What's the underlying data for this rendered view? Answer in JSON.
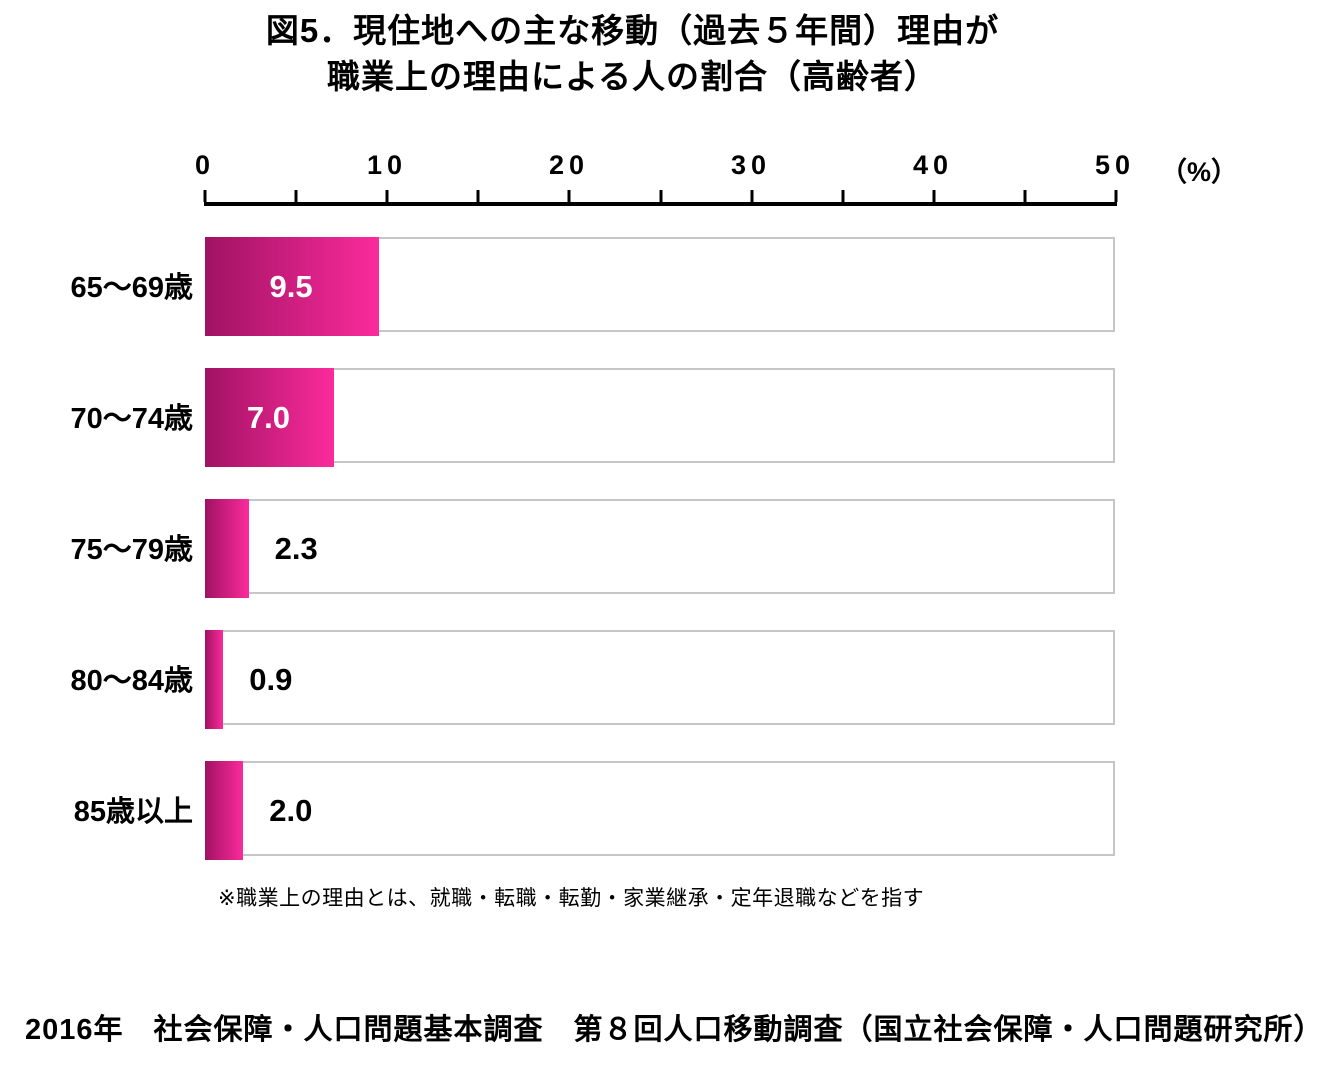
{
  "title": {
    "line1": "図5．現住地への主な移動（過去５年間）理由が",
    "line2": "職業上の理由による人の割合（高齢者）"
  },
  "chart_data": {
    "type": "bar",
    "orientation": "horizontal",
    "categories": [
      "65〜69歳",
      "70〜74歳",
      "75〜79歳",
      "80〜84歳",
      "85歳以上"
    ],
    "values": [
      9.5,
      7.0,
      2.3,
      0.9,
      2.0
    ],
    "value_labels": [
      "9.5",
      "7.0",
      "2.3",
      "0.9",
      "2.0"
    ],
    "xlim": [
      0,
      50
    ],
    "axis": {
      "major_ticks": [
        0,
        10,
        20,
        30,
        40,
        50
      ],
      "minor_tick_step": 5,
      "unit_label": "（%）",
      "position": "top"
    },
    "grid": false,
    "legend": "none",
    "bar_gradient": {
      "from": "#A01263",
      "to": "#FB2B9C"
    },
    "track": {
      "fill": "#ffffff",
      "border": "#c6c6c6"
    },
    "inside_label_threshold": 5
  },
  "footnote": "※職業上の理由とは、就職・転職・転勤・家業継承・定年退職などを指す",
  "source": "2016年　社会保障・人口問題基本調査　第８回人口移動調査（国立社会保障・人口問題研究所）"
}
